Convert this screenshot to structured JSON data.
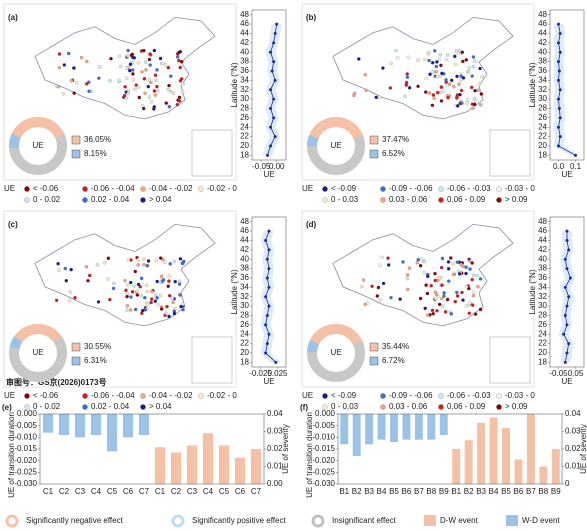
{
  "panels": [
    {
      "label": "(a)",
      "donut_label": "UE",
      "negative": 36.05,
      "negative_label": "36.05%",
      "positive": 8.15,
      "positive_label": "8.15%",
      "legend_title": "UE",
      "legend": [
        {
          "label": "< -0.06",
          "color": "#8b0000"
        },
        {
          "label": "-0.06 - -0.04",
          "color": "#d7191c"
        },
        {
          "label": "-0.04 - -0.02",
          "color": "#f4a582"
        },
        {
          "label": "-0.02 - 0",
          "color": "#fde9c8"
        },
        {
          "label": "0 - 0.02",
          "color": "#c9ecf4"
        },
        {
          "label": "0.02 - 0.04",
          "color": "#3a6fd8"
        },
        {
          "label": "> 0.04",
          "color": "#1a1a8c"
        }
      ],
      "profile": {
        "type": "line",
        "ylabel": "Latitude (°N)",
        "xlabel": "UE",
        "ylim": [
          17,
          49
        ],
        "yticks": [
          18,
          20,
          22,
          24,
          26,
          28,
          30,
          32,
          34,
          36,
          38,
          40,
          42,
          44,
          46,
          48
        ],
        "xlim": [
          -0.08,
          0.03
        ],
        "xticks": [
          -0.05,
          {
            "value": 0,
            "label": "0.00"
          }
        ],
        "x": [
          18,
          20,
          22,
          24,
          26,
          28,
          30,
          32,
          34,
          36,
          38,
          40,
          42,
          44,
          46
        ],
        "values": [
          -0.03,
          -0.02,
          -0.005,
          -0.02,
          -0.01,
          -0.02,
          -0.01,
          -0.02,
          -0.005,
          -0.015,
          -0.01,
          -0.02,
          -0.01,
          -0.005,
          0
        ]
      }
    },
    {
      "label": "(b)",
      "donut_label": "UE",
      "negative": 37.47,
      "negative_label": "37.47%",
      "positive": 6.52,
      "positive_label": "6.52%",
      "legend_title": "UE",
      "legend": [
        {
          "label": "< -0.09",
          "color": "#1a1a8c"
        },
        {
          "label": "-0.09 - -0.06",
          "color": "#3a6fd8"
        },
        {
          "label": "-0.06 - -0.03",
          "color": "#c9ecf4"
        },
        {
          "label": "-0.03 - 0",
          "color": "#eef6f0"
        },
        {
          "label": "0 - 0.03",
          "color": "#fde9c8"
        },
        {
          "label": "0.03 - 0.06",
          "color": "#f4a582"
        },
        {
          "label": "0.06 - 0.09",
          "color": "#d7191c"
        },
        {
          "label": "> 0.09",
          "color": "#8b0000"
        }
      ],
      "profile": {
        "type": "line",
        "ylabel": "Latitude (°N)",
        "xlabel": "UE",
        "ylim": [
          17,
          49
        ],
        "yticks": [
          18,
          20,
          22,
          24,
          26,
          28,
          30,
          32,
          34,
          36,
          38,
          40,
          42,
          44,
          46,
          48
        ],
        "xlim": [
          -0.05,
          0.15
        ],
        "xticks": [
          {
            "value": 0,
            "label": "0.0"
          },
          0.1
        ],
        "x": [
          18,
          20,
          22,
          24,
          26,
          28,
          30,
          32,
          34,
          36,
          38,
          40,
          42,
          44,
          46
        ],
        "values": [
          0.1,
          0,
          0.01,
          0,
          0.01,
          0.005,
          0,
          0.01,
          0,
          0.005,
          0,
          0.01,
          0,
          0.01,
          0
        ]
      }
    },
    {
      "label": "(c)",
      "donut_label": "UE",
      "negative": 30.55,
      "negative_label": "30.55%",
      "positive": 6.31,
      "positive_label": "6.31%",
      "legend_title": "UE",
      "note": "审图号：GS京(2026)0173号",
      "legend": [
        {
          "label": "< -0.06",
          "color": "#8b0000"
        },
        {
          "label": "-0.06 - -0.04",
          "color": "#d7191c"
        },
        {
          "label": "-0.04 - -0.02",
          "color": "#f4a582"
        },
        {
          "label": "-0.02 - 0",
          "color": "#fde9c8"
        },
        {
          "label": "0 - 0.02",
          "color": "#c9ecf4"
        },
        {
          "label": "0.02 - 0.04",
          "color": "#3a6fd8"
        },
        {
          "label": "> 0.04",
          "color": "#1a1a8c"
        }
      ],
      "profile": {
        "type": "line",
        "ylabel": "Latitude (°N)",
        "xlabel": "UE",
        "ylim": [
          17,
          49
        ],
        "yticks": [
          18,
          20,
          22,
          24,
          26,
          28,
          30,
          32,
          34,
          36,
          38,
          40,
          42,
          44,
          46,
          48
        ],
        "xlim": [
          -0.05,
          0.05
        ],
        "xticks": [
          -0.025,
          0.025
        ],
        "x": [
          18,
          20,
          22,
          24,
          26,
          28,
          30,
          32,
          34,
          36,
          38,
          40,
          42,
          44,
          46
        ],
        "values": [
          0.02,
          -0.01,
          -0.005,
          0,
          -0.01,
          -0.005,
          0,
          -0.01,
          0,
          -0.005,
          0,
          -0.005,
          0,
          -0.01,
          0
        ]
      }
    },
    {
      "label": "(d)",
      "donut_label": "UE",
      "negative": 35.44,
      "negative_label": "35.44%",
      "positive": 6.72,
      "positive_label": "6.72%",
      "legend_title": "UE",
      "legend": [
        {
          "label": "< -0.09",
          "color": "#1a1a8c"
        },
        {
          "label": "-0.09 - -0.06",
          "color": "#3a6fd8"
        },
        {
          "label": "-0.06 - -0.03",
          "color": "#c9ecf4"
        },
        {
          "label": "-0.03 - 0",
          "color": "#eef6f0"
        },
        {
          "label": "0 - 0.03",
          "color": "#fde9c8"
        },
        {
          "label": "0.03 - 0.06",
          "color": "#f4a582"
        },
        {
          "label": "0.06 - 0.09",
          "color": "#d7191c"
        },
        {
          "label": "> 0.09",
          "color": "#8b0000"
        }
      ],
      "profile": {
        "type": "line",
        "ylabel": "Latitude (°N)",
        "xlabel": "UE",
        "ylim": [
          17,
          49
        ],
        "yticks": [
          18,
          20,
          22,
          24,
          26,
          28,
          30,
          32,
          34,
          36,
          38,
          40,
          42,
          44,
          46,
          48
        ],
        "xlim": [
          -0.1,
          0.1
        ],
        "xticks": [
          -0.05,
          0.05
        ],
        "x": [
          18,
          20,
          22,
          24,
          26,
          28,
          30,
          32,
          34,
          36,
          38,
          40,
          42,
          44,
          46
        ],
        "values": [
          -0.01,
          0,
          0.01,
          -0.02,
          0,
          -0.01,
          0,
          0.01,
          -0.01,
          0.02,
          0,
          -0.01,
          0.01,
          0,
          0
        ]
      }
    }
  ],
  "bar_panels": [
    {
      "label": "(e)",
      "type": "bar",
      "ylabel": "UE of transition duration",
      "y2label": "UE of severity",
      "ylim": [
        -0.03,
        0
      ],
      "yticks": [
        {
          "value": -0.03,
          "label": "-0.030"
        },
        {
          "value": -0.025,
          "label": "-0.025"
        },
        {
          "value": -0.02,
          "label": "-0.020"
        },
        {
          "value": -0.015,
          "label": "-0.015"
        },
        {
          "value": -0.01,
          "label": "-0.010"
        },
        {
          "value": -0.005,
          "label": "-0.005"
        },
        {
          "value": 0,
          "label": "0.000"
        }
      ],
      "y2lim": [
        0,
        0.04
      ],
      "y2ticks": [
        {
          "value": 0,
          "label": "0.00"
        },
        0.01,
        0.02,
        0.03,
        0.04
      ],
      "categories": [
        "C1",
        "C2",
        "C3",
        "C4",
        "C5",
        "C6",
        "C7",
        "C1",
        "C2",
        "C3",
        "C4",
        "C5",
        "C6",
        "C7"
      ],
      "series": [
        {
          "color": "#9cc3e6",
          "values": [
            -0.008,
            -0.009,
            -0.01,
            -0.009,
            -0.016,
            -0.01,
            -0.009,
            null,
            null,
            null,
            null,
            null,
            null,
            null
          ]
        },
        {
          "color": "#f4c0a6",
          "axis": "y2",
          "values": [
            null,
            null,
            null,
            null,
            null,
            null,
            null,
            0.021,
            0.018,
            0.022,
            0.029,
            0.022,
            0.015,
            0.02
          ]
        }
      ]
    },
    {
      "label": "(f)",
      "type": "bar",
      "ylabel": "UE of transition duration",
      "y2label": "UE of severity",
      "ylim": [
        -0.03,
        0
      ],
      "yticks": [
        {
          "value": -0.03,
          "label": "-0.030"
        },
        {
          "value": -0.025,
          "label": "-0.025"
        },
        {
          "value": -0.02,
          "label": "-0.020"
        },
        {
          "value": -0.015,
          "label": "-0.015"
        },
        {
          "value": -0.01,
          "label": "-0.010"
        },
        {
          "value": -0.005,
          "label": "-0.005"
        },
        {
          "value": 0,
          "label": "0.000"
        }
      ],
      "y2lim": [
        0,
        0.04
      ],
      "y2ticks": [
        0,
        0.01,
        0.02,
        0.03,
        0.04
      ],
      "categories": [
        "B1",
        "B2",
        "B3",
        "B4",
        "B5",
        "B6",
        "B7",
        "B8",
        "B9",
        "B1",
        "B2",
        "B3",
        "B4",
        "B5",
        "B6",
        "B7",
        "B8",
        "B9"
      ],
      "series": [
        {
          "name": "W-D event",
          "color": "#9cc3e6",
          "values": [
            -0.013,
            -0.018,
            -0.013,
            -0.011,
            -0.012,
            -0.011,
            -0.011,
            -0.011,
            -0.009,
            null,
            null,
            null,
            null,
            null,
            null,
            null,
            null,
            null
          ]
        },
        {
          "name": "D-W event",
          "color": "#f4c0a6",
          "axis": "y2",
          "values": [
            null,
            null,
            null,
            null,
            null,
            null,
            null,
            null,
            null,
            0.02,
            0.025,
            0.035,
            0.038,
            0.032,
            0.014,
            0.04,
            0.01,
            0.02
          ]
        }
      ]
    }
  ],
  "legend": {
    "effects": [
      "Significantly negative effect",
      "Significantly positive effect",
      "Insignificant effect"
    ]
  }
}
